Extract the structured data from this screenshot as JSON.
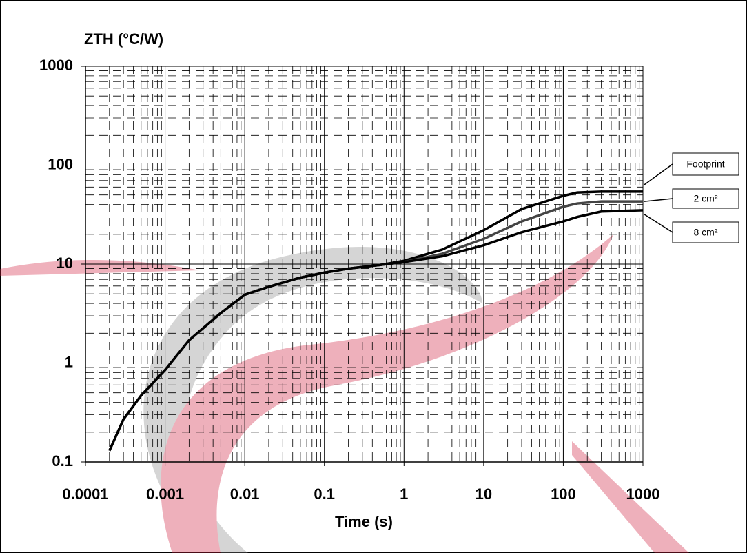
{
  "chart_data": {
    "type": "line",
    "y_label": "ZTH (°C/W)",
    "x_label": "Time (s)",
    "x": [
      0.0002,
      0.0003,
      0.0005,
      0.001,
      0.002,
      0.005,
      0.01,
      0.02,
      0.05,
      0.1,
      0.2,
      0.5,
      1,
      3,
      10,
      30,
      100,
      150,
      300,
      1000
    ],
    "series": [
      {
        "name": "Footprint",
        "color": "#000000",
        "values": [
          0.13,
          0.27,
          0.47,
          0.85,
          1.7,
          3.2,
          4.9,
          5.9,
          7.3,
          8.2,
          9.0,
          9.8,
          10.8,
          14,
          22,
          36,
          49,
          53,
          54,
          54
        ]
      },
      {
        "name": "2 cm²",
        "color": "#444444",
        "values": [
          0.13,
          0.27,
          0.47,
          0.85,
          1.7,
          3.2,
          4.9,
          5.9,
          7.3,
          8.2,
          9.0,
          9.8,
          10.5,
          12.7,
          18,
          27,
          38,
          41,
          43,
          43
        ]
      },
      {
        "name": "8 cm²",
        "color": "#000000",
        "values": [
          0.13,
          0.27,
          0.47,
          0.85,
          1.7,
          3.2,
          4.9,
          5.9,
          7.3,
          8.2,
          9.0,
          9.8,
          10.5,
          12,
          15.5,
          21,
          27,
          30,
          34,
          35
        ]
      }
    ],
    "xlim": [
      0.0001,
      1000
    ],
    "ylim": [
      0.1,
      1000
    ],
    "xticks": [
      0.0001,
      0.001,
      0.01,
      0.1,
      1,
      10,
      100,
      1000
    ],
    "yticks": [
      0.1,
      1,
      10,
      100,
      1000
    ],
    "log_x": true,
    "log_y": true,
    "grid": true,
    "minor_grid": true,
    "legend": "right"
  }
}
